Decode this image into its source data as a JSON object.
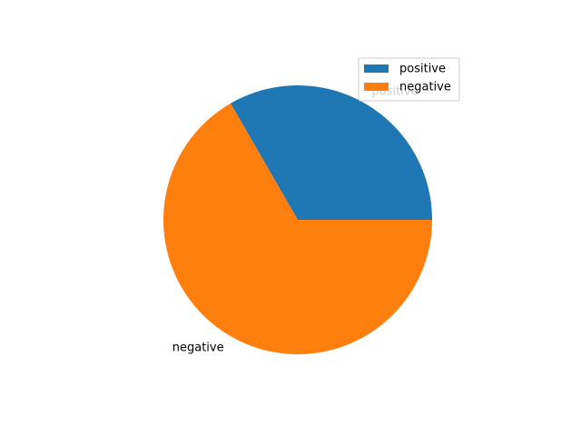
{
  "chart_data": {
    "type": "pie",
    "categories": [
      "positive",
      "negative"
    ],
    "values": [
      1,
      2
    ],
    "colors": [
      "#1f77b4",
      "#ff7f0e"
    ],
    "slice_labels": [
      "positive",
      "negative"
    ],
    "legend": {
      "placement": "upper-right",
      "entries": [
        "positive",
        "negative"
      ]
    },
    "start_angle_deg": 0,
    "direction": "counterclockwise"
  }
}
